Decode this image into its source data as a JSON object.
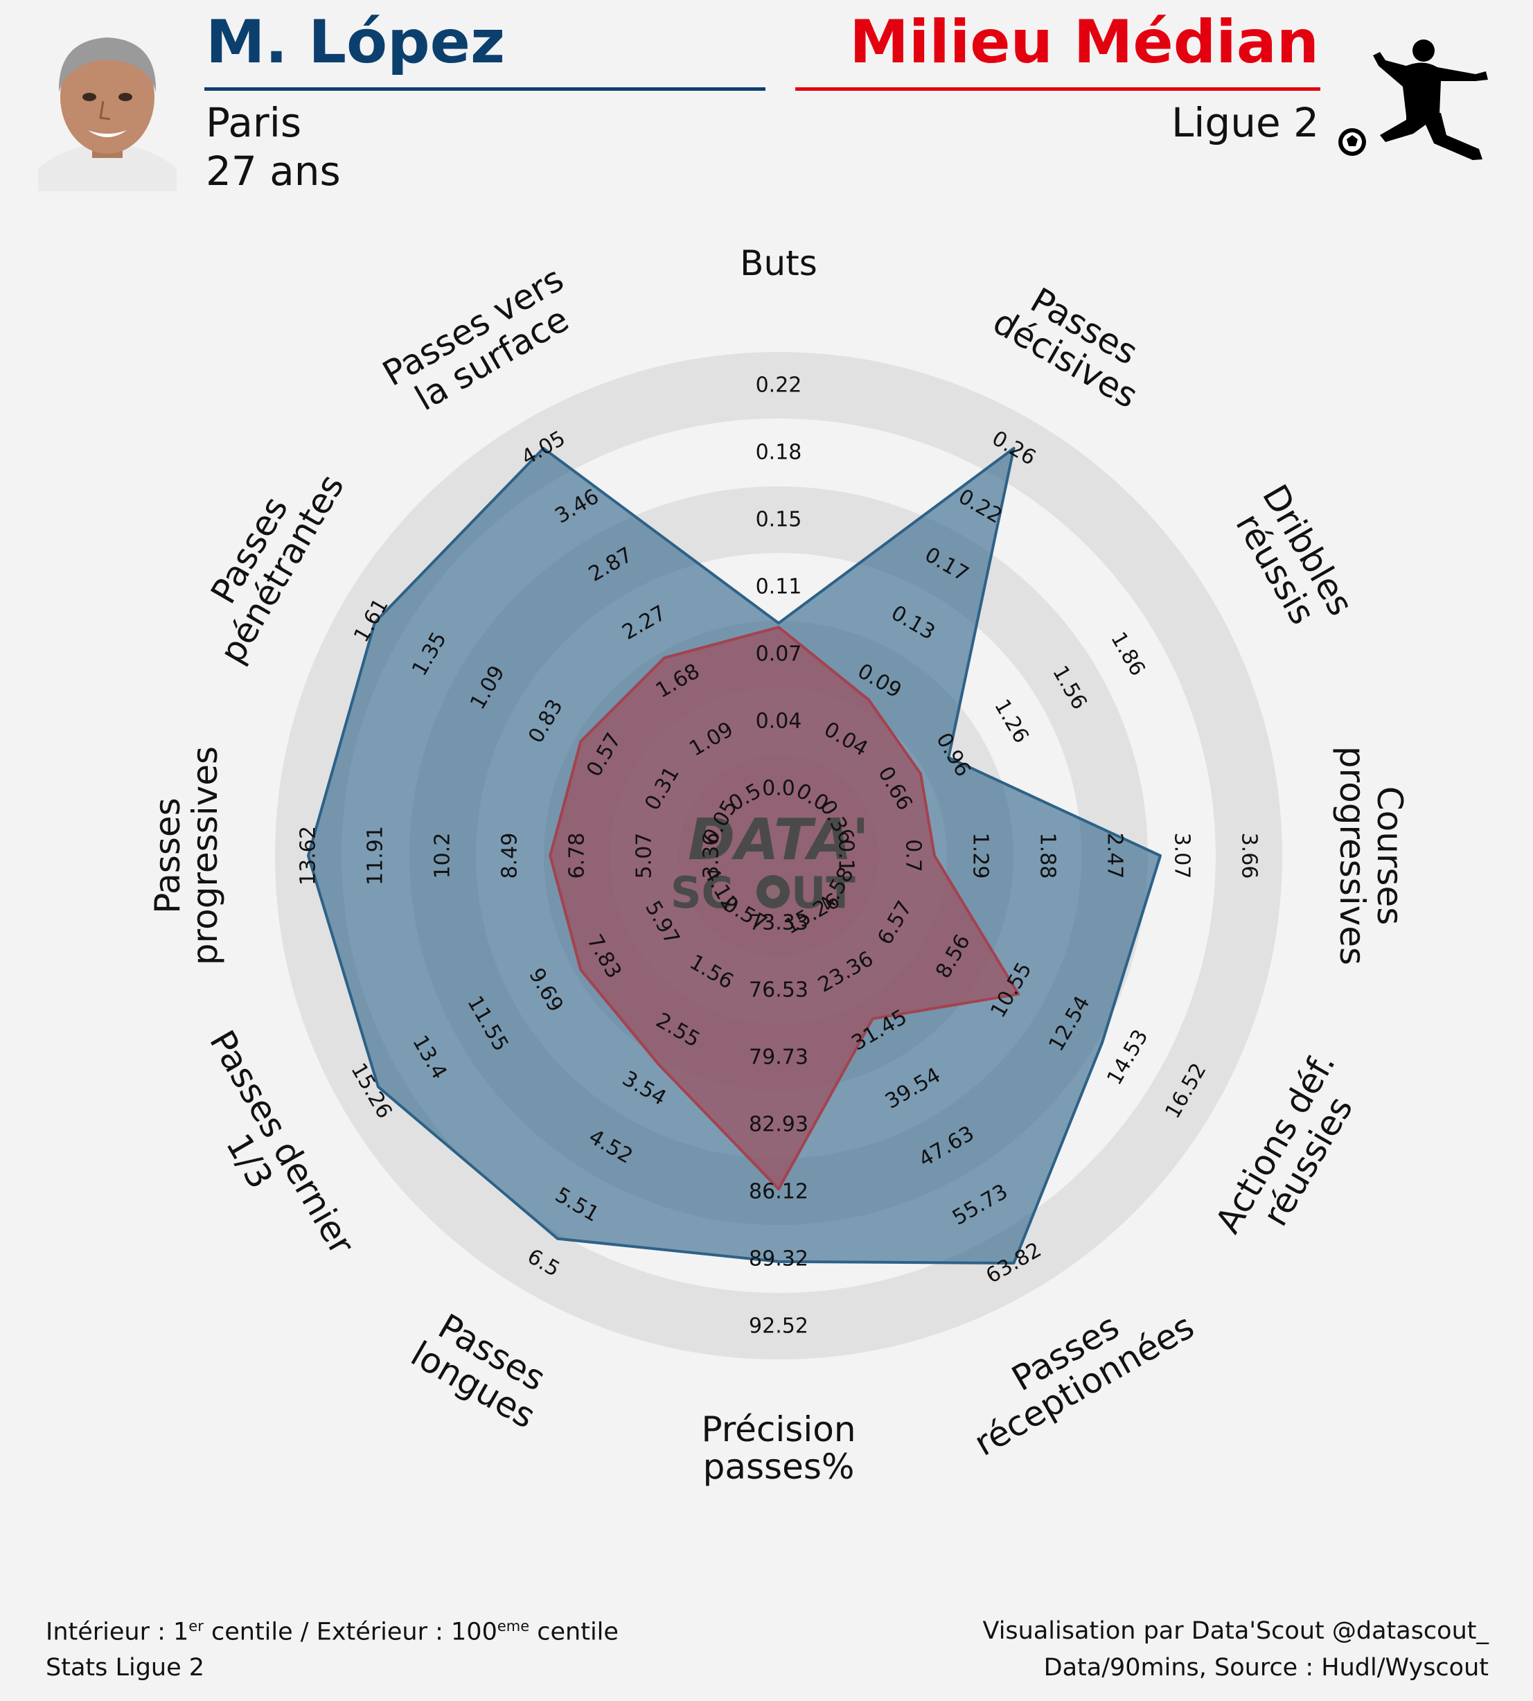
{
  "header": {
    "player_name": "M. López",
    "club": "Paris",
    "age": "27 ans",
    "position": "Milieu Médian",
    "league": "Ligue 2",
    "name_color": "#0b3f6e",
    "position_color": "#e3000f"
  },
  "watermark": {
    "line1": "DATA'",
    "line2": "SC",
    "line3": "UT"
  },
  "footer": {
    "left_line1_a": "Intérieur : 1",
    "left_line1_sup1": "er",
    "left_line1_b": " centile / Extérieur : 100",
    "left_line1_sup2": "eme",
    "left_line1_c": " centile",
    "left_line2": "Stats Ligue 2",
    "right_line1": "Visualisation par Data'Scout @datascout_",
    "right_line2": "Data/90mins, Source : Hudl/Wyscout"
  },
  "chart_data": {
    "type": "radar",
    "scale": "percentile",
    "colors": {
      "player": "#2d6288",
      "median": "#a4434f",
      "rings": "#e1e1e1"
    },
    "axes": [
      {
        "label": "Buts",
        "ticks": [
          "0.0",
          "0.04",
          "0.07",
          "0.11",
          "0.15",
          "0.18",
          "0.22"
        ]
      },
      {
        "label": "Passes\ndécisives",
        "ticks": [
          "0.0",
          "0.04",
          "0.09",
          "0.13",
          "0.17",
          "0.22",
          "0.26"
        ]
      },
      {
        "label": "Dribbles\nréussis",
        "ticks": [
          "0.36",
          "0.66",
          "0.96",
          "1.26",
          "1.56",
          "1.86",
          ""
        ]
      },
      {
        "label": "Courses\nprogressives",
        "ticks": [
          "0.1",
          "0.7",
          "1.29",
          "1.88",
          "2.47",
          "3.07",
          "3.66"
        ]
      },
      {
        "label": "Actions déf.\nréussies",
        "ticks": [
          "4.58",
          "6.57",
          "8.56",
          "10.55",
          "12.54",
          "14.53",
          "16.52"
        ]
      },
      {
        "label": "Passes\nréceptionnées",
        "ticks": [
          "15.26",
          "23.36",
          "31.45",
          "39.54",
          "47.63",
          "55.73",
          "63.82"
        ]
      },
      {
        "label": "Précision\npasses%",
        "ticks": [
          "73.33",
          "76.53",
          "79.73",
          "82.93",
          "86.12",
          "89.32",
          "92.52"
        ]
      },
      {
        "label": "Passes\nlongues",
        "ticks": [
          "0.57",
          "1.56",
          "2.55",
          "3.54",
          "4.52",
          "5.51",
          "6.5"
        ]
      },
      {
        "label": "Passes dernier\n1/3",
        "ticks": [
          "4.12",
          "5.97",
          "7.83",
          "9.69",
          "11.55",
          "13.4",
          "15.26"
        ]
      },
      {
        "label": "Passes\nprogressives",
        "ticks": [
          "3.36",
          "5.07",
          "6.78",
          "8.49",
          "10.2",
          "11.91",
          "13.62"
        ]
      },
      {
        "label": "Passes\npénétrantes",
        "ticks": [
          "0.05",
          "0.31",
          "0.57",
          "0.83",
          "1.09",
          "1.35",
          "1.61"
        ]
      },
      {
        "label": "Passes vers\nla surface",
        "ticks": [
          "0.5",
          "1.09",
          "1.68",
          "2.27",
          "2.87",
          "3.46",
          "4.05"
        ]
      }
    ],
    "series": [
      {
        "name": "M. López",
        "values": [
          41,
          100,
          32,
          78,
          76,
          100,
          84,
          93,
          98,
          100,
          99,
          100
        ]
      },
      {
        "name": "Milieu Médian",
        "values": [
          40,
          28,
          24,
          22,
          52,
          30,
          66,
          43,
          40,
          40,
          40,
          40
        ]
      }
    ]
  }
}
